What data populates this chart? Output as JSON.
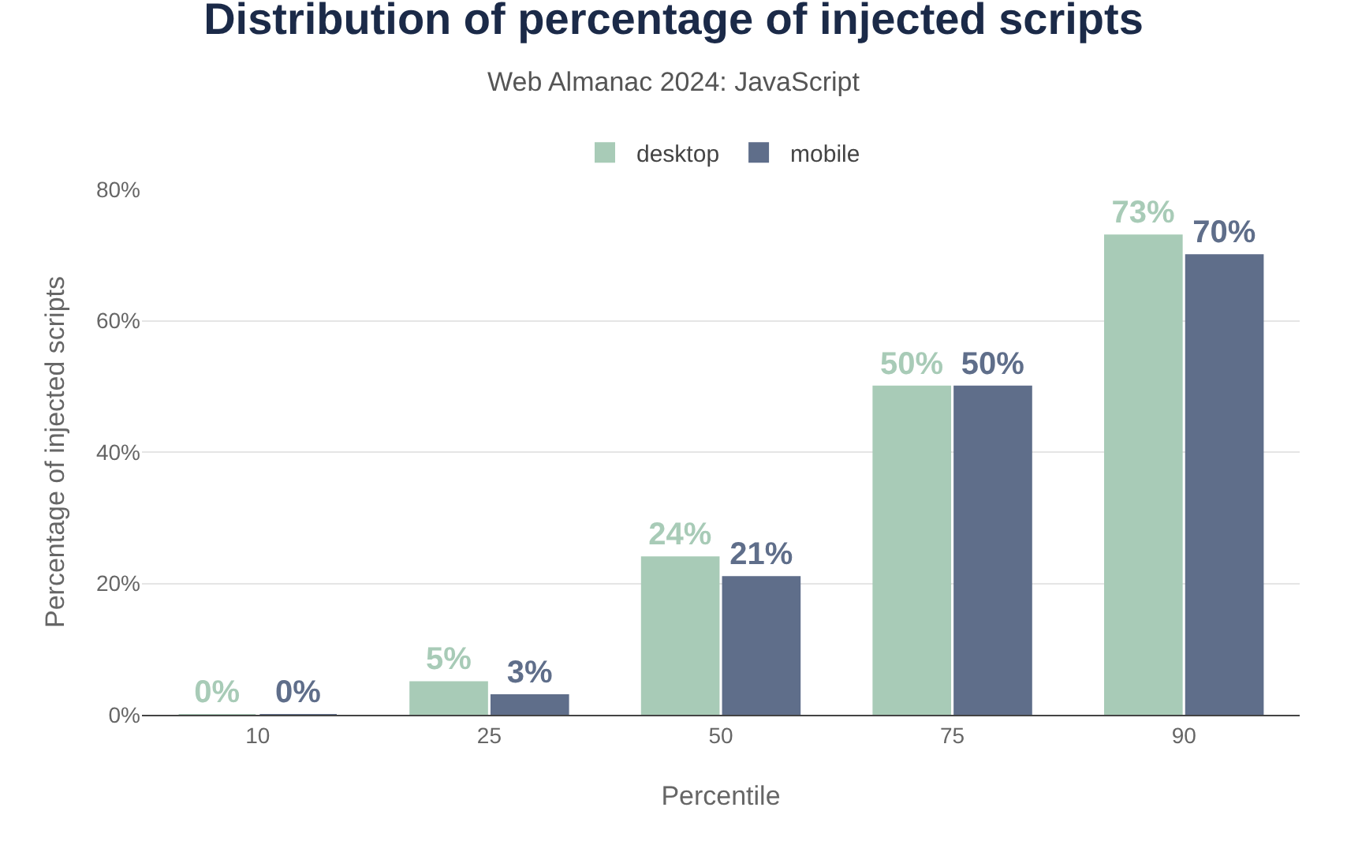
{
  "chart_data": {
    "type": "bar",
    "title": "Distribution of percentage of injected scripts",
    "subtitle": "Web Almanac 2024: JavaScript",
    "xlabel": "Percentile",
    "ylabel": "Percentage of injected scripts",
    "categories": [
      "10",
      "25",
      "50",
      "75",
      "90"
    ],
    "series": [
      {
        "name": "desktop",
        "color": "#a8cbb7",
        "values": [
          0,
          5,
          24,
          50,
          73
        ],
        "value_labels": [
          "0%",
          "5%",
          "24%",
          "50%",
          "73%"
        ]
      },
      {
        "name": "mobile",
        "color": "#5f6e8a",
        "values": [
          0,
          3,
          21,
          50,
          70
        ],
        "value_labels": [
          "0%",
          "3%",
          "21%",
          "50%",
          "70%"
        ]
      }
    ],
    "ylim": [
      0,
      80
    ],
    "yticks": [
      {
        "value": 0,
        "label": "0%"
      },
      {
        "value": 20,
        "label": "20%"
      },
      {
        "value": 40,
        "label": "40%"
      },
      {
        "value": 60,
        "label": "60%"
      },
      {
        "value": 80,
        "label": "80%"
      }
    ],
    "grid": "y",
    "legend": "top"
  }
}
